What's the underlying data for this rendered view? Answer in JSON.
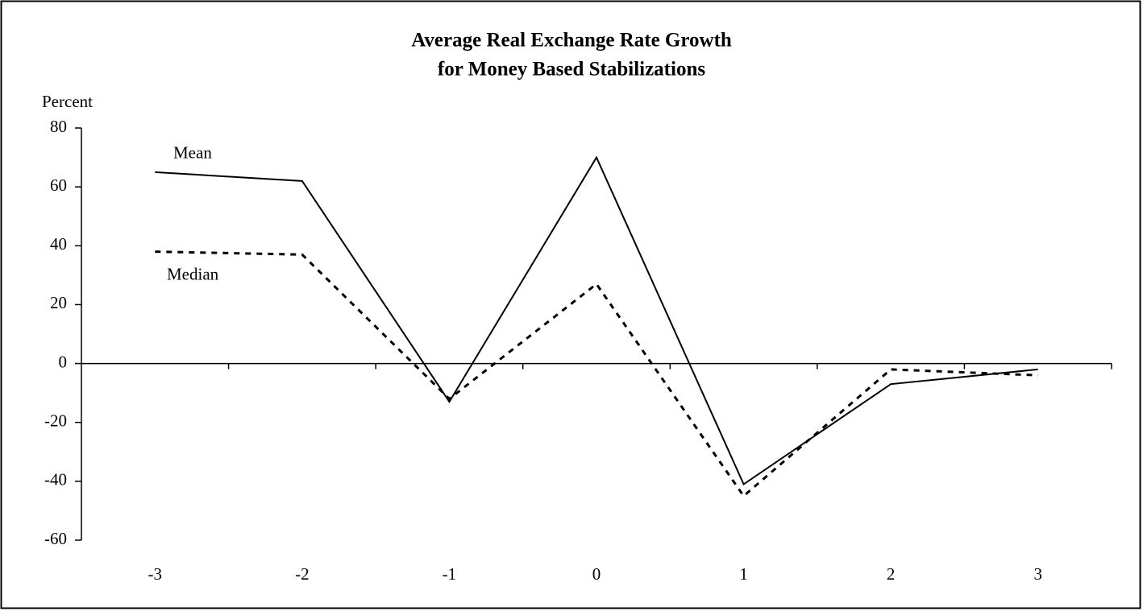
{
  "chart_data": {
    "type": "line",
    "title": "Average Real Exchange Rate Growth",
    "subtitle": "for Money Based Stabilizations",
    "y_label": "Percent",
    "categories": [
      "-3",
      "-2",
      "-1",
      "0",
      "1",
      "2",
      "3"
    ],
    "series": [
      {
        "name": "Mean",
        "color": "#000000",
        "style": "solid",
        "values": [
          65,
          62,
          -13,
          70,
          -41,
          -7,
          -2
        ]
      },
      {
        "name": "Median",
        "color": "#000000",
        "style": "dashed",
        "values": [
          38,
          37,
          -12,
          27,
          -45,
          -2,
          -4
        ]
      }
    ],
    "ylim": [
      -60,
      80
    ],
    "yticks": [
      -60,
      -40,
      -20,
      0,
      20,
      40,
      60,
      80
    ],
    "grid": false
  }
}
